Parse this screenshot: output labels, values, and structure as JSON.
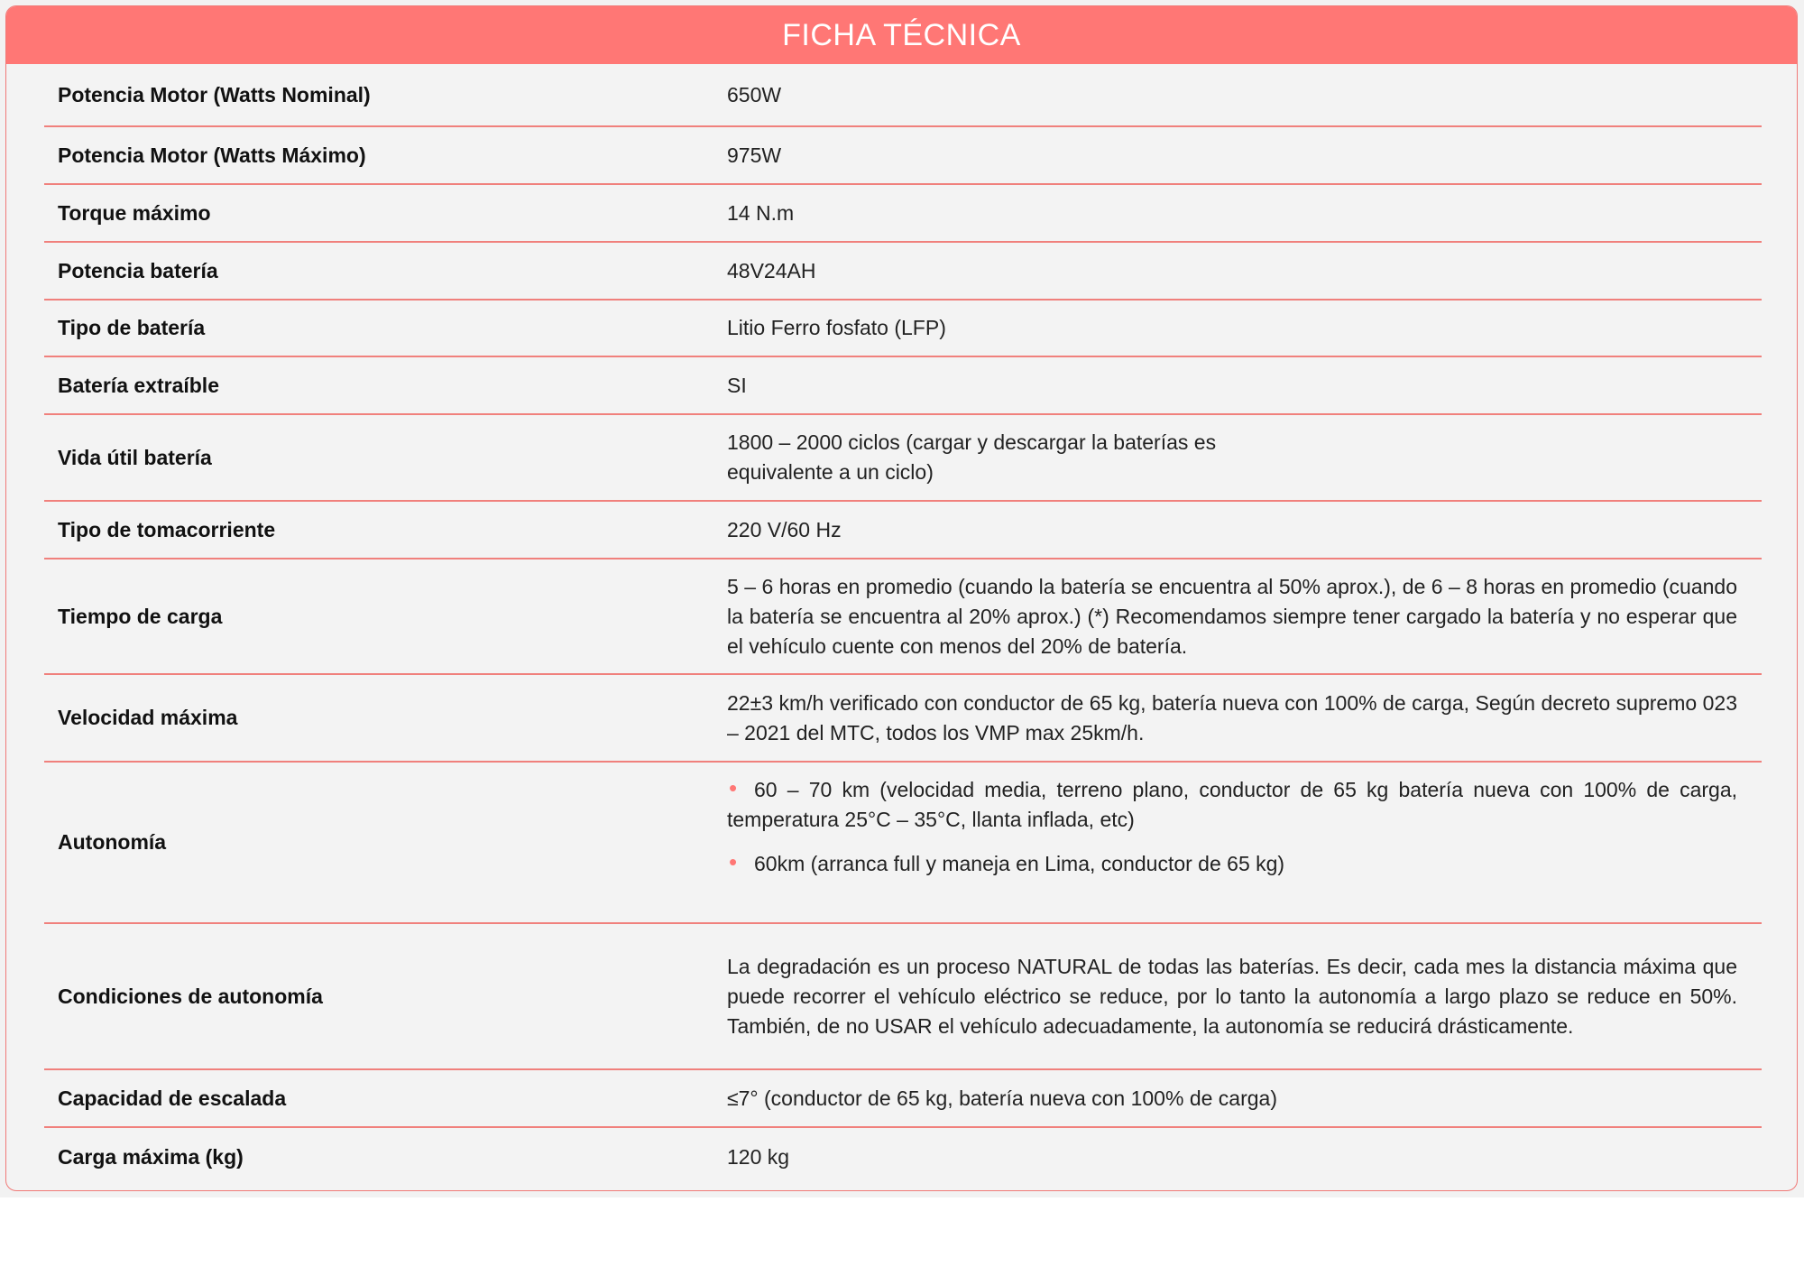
{
  "title": "FICHA TÉCNICA",
  "accent_color": "#ff7775",
  "rows": [
    {
      "label": "Potencia Motor (Watts Nominal)",
      "value": "650W"
    },
    {
      "label": "Potencia Motor (Watts Máximo)",
      "value": "975W"
    },
    {
      "label": "Torque máximo",
      "value": "14 N.m"
    },
    {
      "label": "Potencia batería",
      "value": "48V24AH"
    },
    {
      "label": "Tipo de batería",
      "value": "Litio Ferro fosfato (LFP)"
    },
    {
      "label": "Batería extraíble",
      "value": "SI"
    },
    {
      "label": "Vida útil batería",
      "value": "1800 – 2000 ciclos (cargar y descargar la baterías es equivalente a un ciclo)"
    },
    {
      "label": "Tipo de tomacorriente",
      "value": "220 V/60 Hz"
    },
    {
      "label": "Tiempo de carga",
      "value": "5 – 6 horas en promedio (cuando la batería se encuentra al 50% aprox.), de 6 – 8 horas en promedio (cuando la batería se encuentra al 20% aprox.) (*) Recomendamos siempre tener cargado la batería y no esperar que el vehículo cuente con menos del 20% de batería."
    },
    {
      "label": "Velocidad máxima",
      "value": "22±3 km/h verificado con conductor de 65 kg, batería nueva con 100% de carga, Según decreto supremo 023 – 2021 del MTC, todos los VMP max 25km/h."
    },
    {
      "label": "Autonomía",
      "items": [
        "60 – 70 km (velocidad media, terreno plano, conductor de 65 kg batería nueva con 100% de carga, temperatura 25°C – 35°C, llanta inflada, etc)",
        "60km (arranca full y maneja en Lima, conductor de 65 kg)"
      ]
    },
    {
      "label": "Condiciones de autonomía",
      "value": "La degradación es un proceso NATURAL de todas las baterías. Es decir, cada mes la distancia máxima que puede recorrer el vehículo eléctrico se reduce, por lo tanto la autonomía a largo plazo se reduce en 50%. También, de no USAR el vehículo adecuadamente, la autonomía se reducirá drásticamente."
    },
    {
      "label": "Capacidad de escalada",
      "value": "≤7° (conductor de 65 kg, batería nueva con 100% de carga)"
    },
    {
      "label": "Carga máxima (kg)",
      "value": "120 kg"
    }
  ]
}
